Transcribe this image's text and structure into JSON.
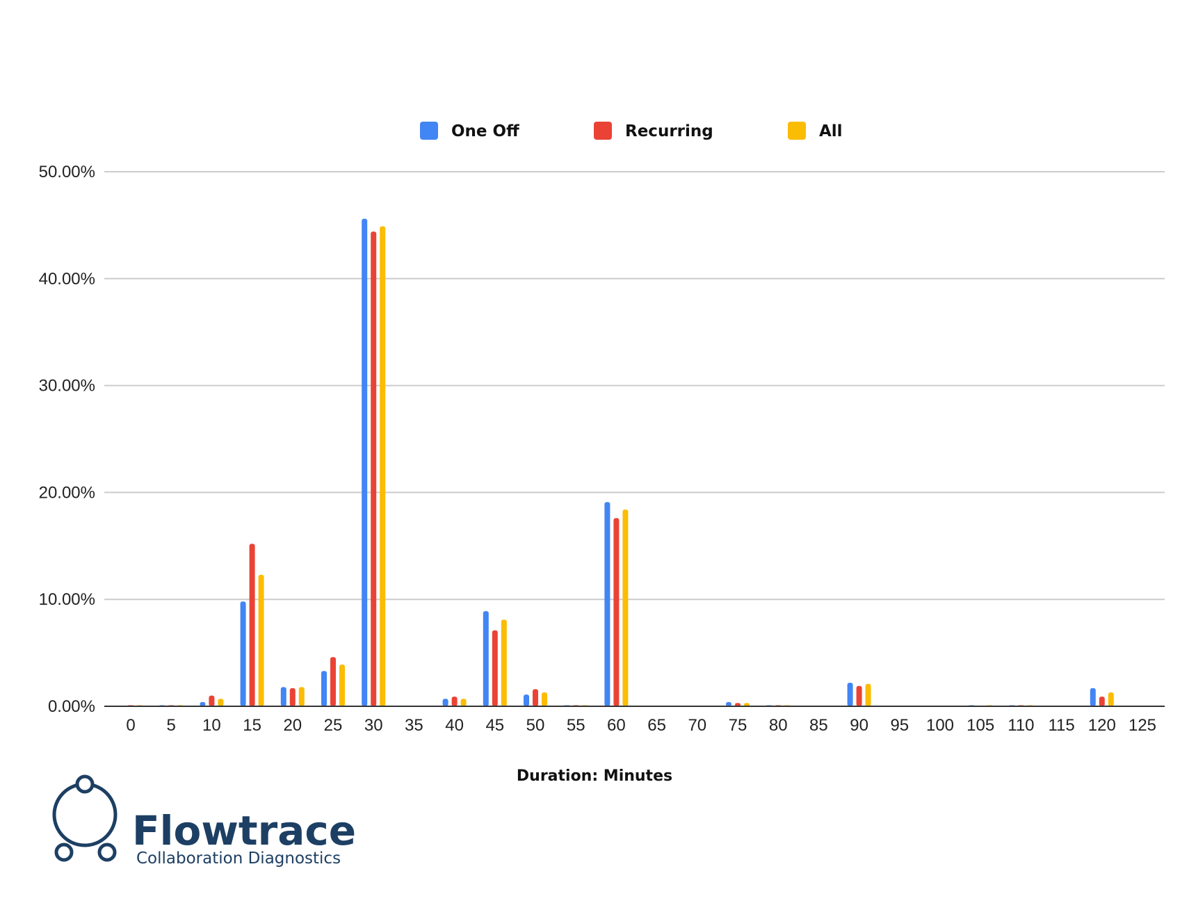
{
  "chart_data": {
    "type": "bar",
    "title": "",
    "xlabel": "Duration: Minutes",
    "ylabel": "",
    "ylim": [
      0,
      50
    ],
    "y_ticks": [
      "0.00%",
      "10.00%",
      "20.00%",
      "30.00%",
      "40.00%",
      "50.00%"
    ],
    "grid": true,
    "legend_position": "top",
    "categories": [
      "0",
      "5",
      "10",
      "15",
      "20",
      "25",
      "30",
      "35",
      "40",
      "45",
      "50",
      "55",
      "60",
      "65",
      "70",
      "75",
      "80",
      "85",
      "90",
      "95",
      "100",
      "105",
      "110",
      "115",
      "120",
      "125"
    ],
    "series": [
      {
        "name": "One Off",
        "color": "#4285f4",
        "values": [
          0,
          0.1,
          0.4,
          9.8,
          1.8,
          3.3,
          45.6,
          0,
          0.7,
          8.9,
          1.1,
          0.1,
          19.1,
          0,
          0,
          0.4,
          0.1,
          0,
          2.2,
          0,
          0,
          0.1,
          0.1,
          0,
          1.7,
          0
        ]
      },
      {
        "name": "Recurring",
        "color": "#ea4335",
        "values": [
          0.1,
          0.1,
          1.0,
          15.2,
          1.7,
          4.6,
          44.4,
          0,
          0.9,
          7.1,
          1.6,
          0.1,
          17.6,
          0,
          0,
          0.3,
          0.1,
          0,
          1.9,
          0,
          0,
          0,
          0.1,
          0,
          0.9,
          0
        ]
      },
      {
        "name": "All",
        "color": "#fbbc04",
        "values": [
          0.1,
          0.1,
          0.7,
          12.3,
          1.8,
          3.9,
          44.9,
          0,
          0.7,
          8.1,
          1.3,
          0.1,
          18.4,
          0,
          0,
          0.3,
          0.1,
          0,
          2.1,
          0,
          0,
          0.1,
          0.1,
          0,
          1.3,
          0
        ]
      }
    ]
  },
  "brand": {
    "name": "Flowtrace",
    "tagline": "Collaboration Diagnostics",
    "color": "#1d3f63",
    "logo_icon": "triangle-network-icon"
  },
  "style": {
    "grid_color": "#cccccc",
    "axis_color": "#333333"
  }
}
